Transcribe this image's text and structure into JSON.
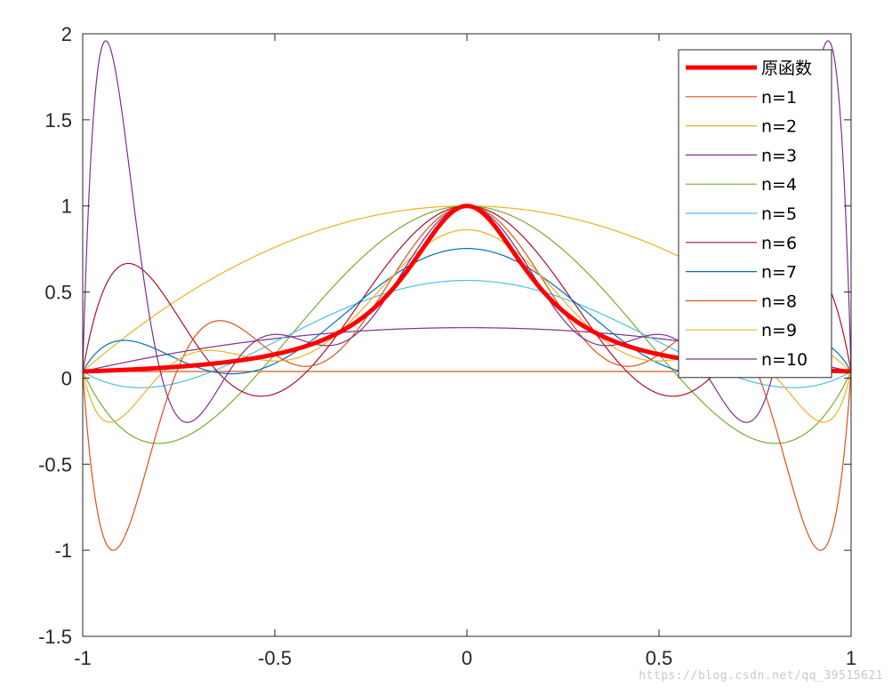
{
  "chart_data": {
    "type": "line",
    "title": "",
    "xlabel": "",
    "ylabel": "",
    "xlim": [
      -1,
      1
    ],
    "ylim": [
      -1.5,
      2
    ],
    "xticks": [
      -1,
      -0.5,
      0,
      0.5,
      1
    ],
    "xtick_labels": [
      "-1",
      "-0.5",
      "0",
      "0.5",
      "1"
    ],
    "yticks": [
      -1.5,
      -1,
      -0.5,
      0,
      0.5,
      1,
      1.5,
      2
    ],
    "ytick_labels": [
      "-1.5",
      "-1",
      "-0.5",
      "0",
      "0.5",
      "1",
      "1.5",
      "2"
    ],
    "grid": false,
    "legend_position": "top-right",
    "function": "1/(1+25x^2)",
    "series": [
      {
        "name": "原函数",
        "color": "#ff0000",
        "kind": "original",
        "linewidth": "thick"
      },
      {
        "name": "n=1",
        "color": "#d95319",
        "n": 1
      },
      {
        "name": "n=2",
        "color": "#edb120",
        "n": 2
      },
      {
        "name": "n=3",
        "color": "#7e2f8e",
        "n": 3
      },
      {
        "name": "n=4",
        "color": "#77ac30",
        "n": 4
      },
      {
        "name": "n=5",
        "color": "#4dbeee",
        "n": 5
      },
      {
        "name": "n=6",
        "color": "#a2142f",
        "n": 6
      },
      {
        "name": "n=7",
        "color": "#0072bd",
        "n": 7
      },
      {
        "name": "n=8",
        "color": "#d95319",
        "n": 8
      },
      {
        "name": "n=9",
        "color": "#edb120",
        "n": 9
      },
      {
        "name": "n=10",
        "color": "#7e2f8e",
        "n": 10
      }
    ]
  },
  "watermark": "https://blog.csdn.net/qq_39515621"
}
